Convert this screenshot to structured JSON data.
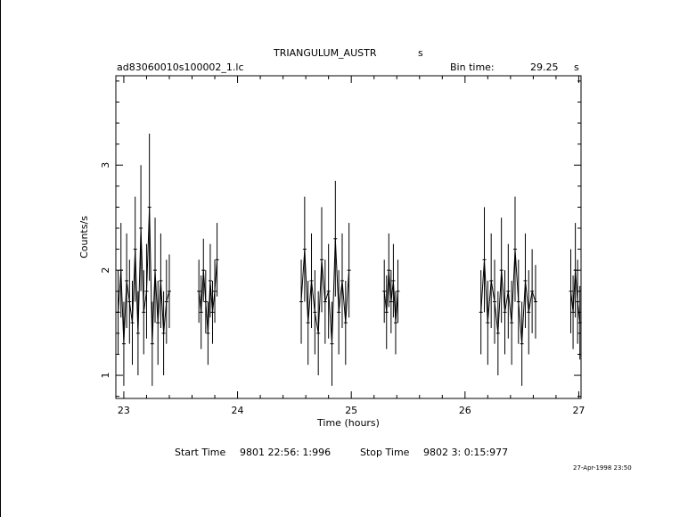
{
  "header": {
    "title": "TRIANGULUM_AUSTR",
    "title_suffix": "s",
    "file_name": "ad83060010s100002_1.lc",
    "bin_time_label": "Bin time:",
    "bin_time_value": "29.25",
    "bin_time_unit": "s"
  },
  "footer": {
    "start_label": "Start Time",
    "start_value": "9801 22:56: 1:996",
    "stop_label": "Stop Time",
    "stop_value": "9802  3: 0:15:977",
    "plot_stamp": "27-Apr-1998 23:50"
  },
  "chart_data": {
    "type": "line",
    "title": "TRIANGULUM_AUSTR",
    "xlabel": "Time (hours)",
    "ylabel": "Counts/s",
    "xlim": [
      22.93,
      27.02
    ],
    "ylim": [
      0.78,
      3.85
    ],
    "x_ticks": [
      23,
      24,
      25,
      26,
      27
    ],
    "y_ticks": [
      1,
      2,
      3
    ],
    "grid": false,
    "color": "#000000",
    "series": [
      {
        "segments": [
          {
            "x": [
              22.95,
              22.975,
              23.0,
              23.025,
              23.05,
              23.075,
              23.1,
              23.125,
              23.15,
              23.175,
              23.2,
              23.225,
              23.25,
              23.275,
              23.3,
              23.325,
              23.35,
              23.375,
              23.4
            ],
            "y": [
              1.6,
              2.0,
              1.3,
              1.9,
              1.7,
              1.5,
              2.2,
              1.4,
              2.4,
              1.6,
              1.8,
              2.6,
              1.3,
              2.0,
              1.5,
              1.9,
              1.4,
              1.7,
              1.8
            ],
            "err": [
              0.4,
              0.45,
              0.4,
              0.45,
              0.4,
              0.4,
              0.5,
              0.4,
              0.6,
              0.4,
              0.45,
              0.7,
              0.4,
              0.5,
              0.4,
              0.45,
              0.4,
              0.4,
              0.35
            ]
          },
          {
            "x": [
              23.66,
              23.68,
              23.7,
              23.72,
              23.74,
              23.76,
              23.78,
              23.8,
              23.82
            ],
            "y": [
              1.8,
              1.6,
              2.0,
              1.7,
              1.4,
              1.9,
              1.6,
              1.8,
              2.1
            ],
            "err": [
              0.3,
              0.35,
              0.3,
              0.3,
              0.3,
              0.35,
              0.3,
              0.3,
              0.35
            ]
          },
          {
            "x": [
              24.56,
              24.59,
              24.62,
              24.65,
              24.68,
              24.71,
              24.74,
              24.77,
              24.8,
              24.83,
              24.86,
              24.89,
              24.92,
              24.95,
              24.98
            ],
            "y": [
              1.7,
              2.2,
              1.5,
              1.9,
              1.6,
              1.4,
              2.1,
              1.7,
              1.8,
              1.3,
              2.3,
              1.6,
              1.9,
              1.5,
              2.0
            ],
            "err": [
              0.4,
              0.5,
              0.4,
              0.45,
              0.4,
              0.4,
              0.5,
              0.4,
              0.45,
              0.4,
              0.55,
              0.4,
              0.45,
              0.4,
              0.45
            ]
          },
          {
            "x": [
              25.29,
              25.31,
              25.33,
              25.35,
              25.37,
              25.39,
              25.41
            ],
            "y": [
              1.8,
              1.6,
              2.0,
              1.7,
              1.9,
              1.5,
              1.8
            ],
            "err": [
              0.3,
              0.35,
              0.35,
              0.3,
              0.35,
              0.3,
              0.3
            ]
          },
          {
            "x": [
              26.14,
              26.17,
              26.2,
              26.23,
              26.26,
              26.29,
              26.32,
              26.35,
              26.38,
              26.41,
              26.44,
              26.47,
              26.5,
              26.53,
              26.56,
              26.59,
              26.62
            ],
            "y": [
              1.6,
              2.1,
              1.5,
              1.9,
              1.7,
              1.4,
              2.0,
              1.6,
              1.8,
              1.5,
              2.2,
              1.7,
              1.3,
              1.9,
              1.6,
              1.8,
              1.7
            ],
            "err": [
              0.4,
              0.5,
              0.4,
              0.45,
              0.4,
              0.4,
              0.5,
              0.4,
              0.45,
              0.4,
              0.5,
              0.4,
              0.4,
              0.45,
              0.4,
              0.4,
              0.35
            ]
          },
          {
            "x": [
              26.93,
              26.95,
              26.97,
              26.99,
              27.01
            ],
            "y": [
              1.8,
              1.6,
              2.0,
              1.7,
              1.5
            ],
            "err": [
              0.4,
              0.35,
              0.45,
              0.4,
              0.35
            ]
          }
        ]
      }
    ]
  }
}
